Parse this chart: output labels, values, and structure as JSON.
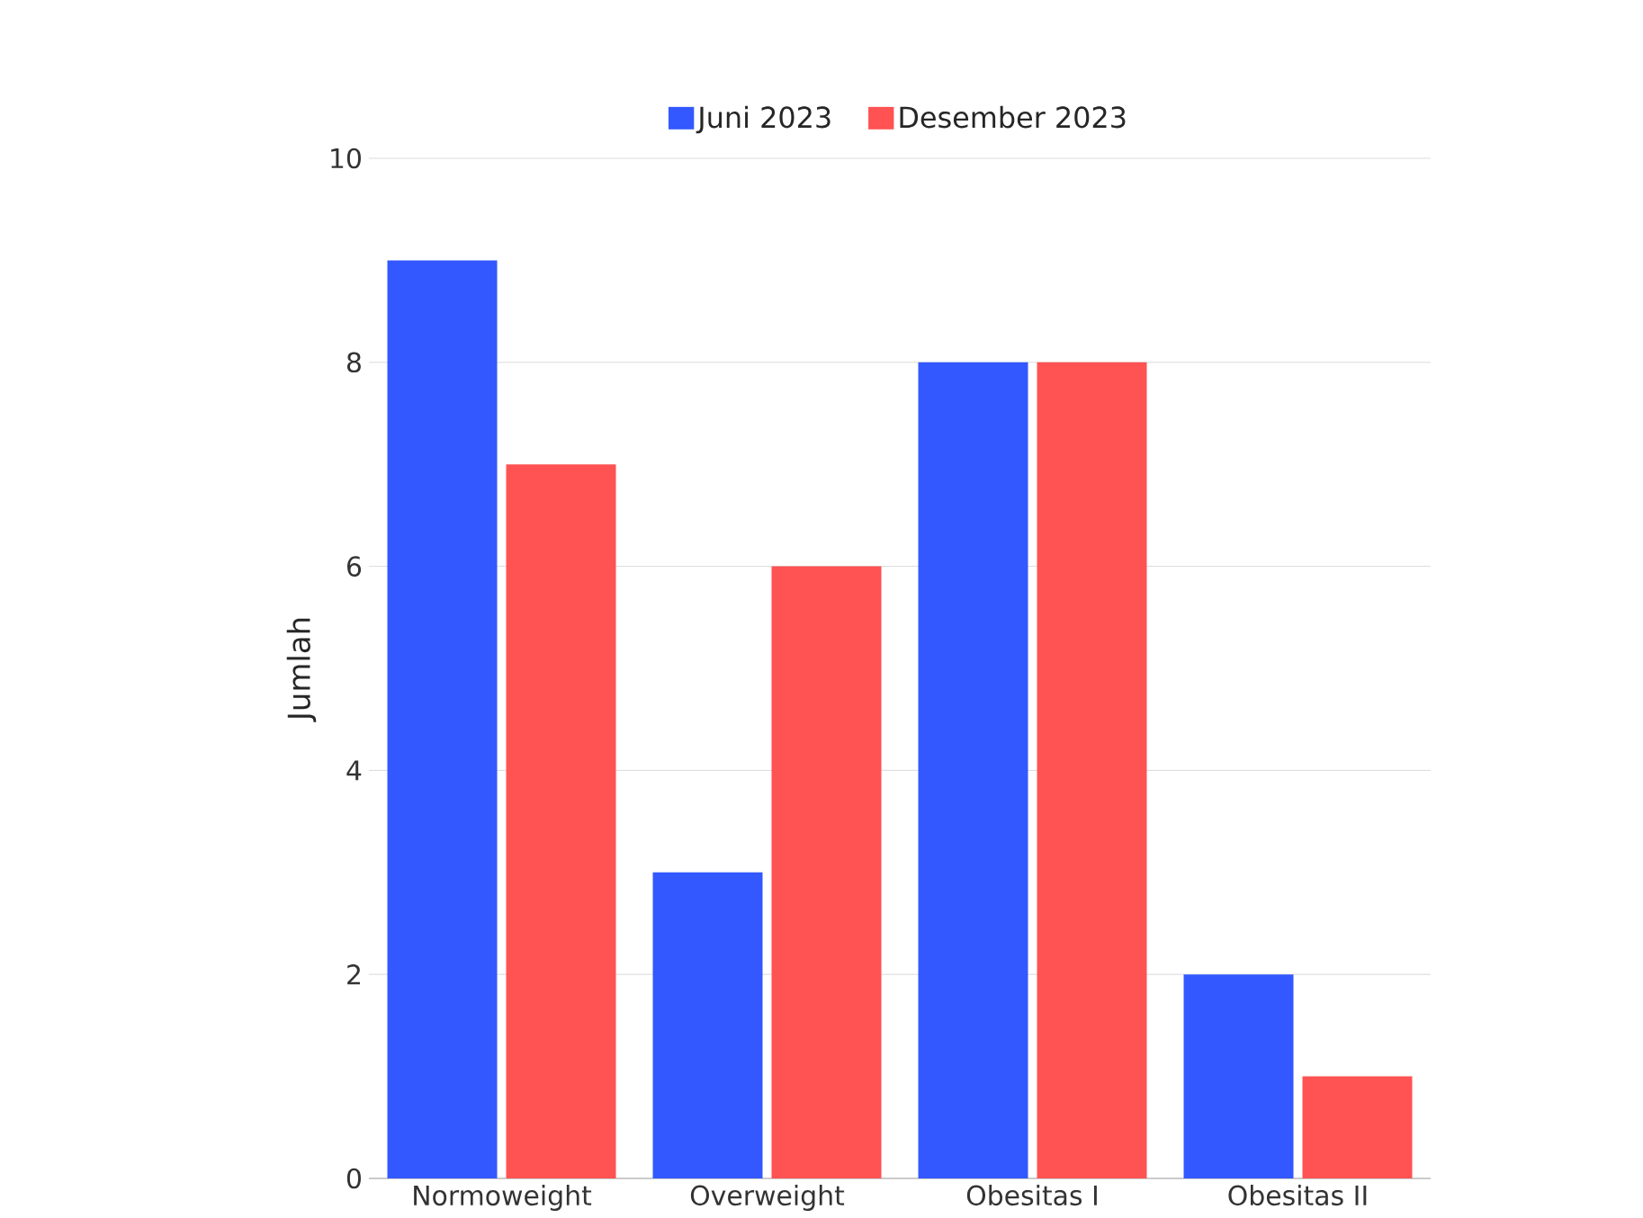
{
  "chart_data": {
    "type": "bar",
    "ylabel": "Jumlah",
    "categories": [
      "Normoweight",
      "Overweight",
      "Obesitas I",
      "Obesitas II"
    ],
    "series": [
      {
        "name": "Juni 2023",
        "color": "#3358ff",
        "values": [
          9,
          3,
          8,
          2
        ]
      },
      {
        "name": "Desember 2023",
        "color": "#ff5252",
        "values": [
          7,
          6,
          8,
          1
        ]
      }
    ],
    "ylim": [
      0,
      10
    ],
    "yticks": [
      0,
      2,
      4,
      6,
      8,
      10
    ],
    "grid": "y",
    "legend": "top"
  }
}
